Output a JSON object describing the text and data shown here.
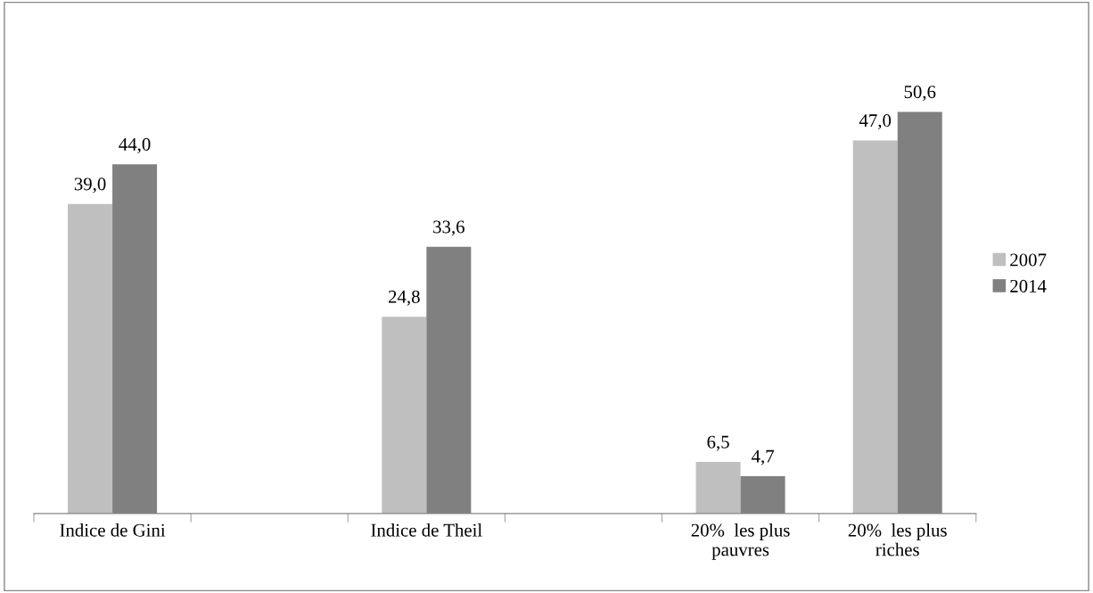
{
  "chart_data": {
    "type": "bar",
    "categories": [
      "Indice de Gini",
      null,
      "Indice de Theil",
      null,
      "20% les plus pauvres",
      "20% les plus riches"
    ],
    "series": [
      {
        "name": "2007",
        "color": "#bfbfbf",
        "values": [
          39.0,
          null,
          24.8,
          null,
          6.5,
          47.0
        ],
        "value_labels": [
          "39,0",
          null,
          "24,8",
          null,
          "6,5",
          "47,0"
        ]
      },
      {
        "name": "2014",
        "color": "#808080",
        "values": [
          44.0,
          null,
          33.6,
          null,
          4.7,
          50.6
        ],
        "value_labels": [
          "44,0",
          null,
          "33,6",
          null,
          "4,7",
          "50,6"
        ]
      }
    ],
    "legend": "right",
    "grid": false
  }
}
